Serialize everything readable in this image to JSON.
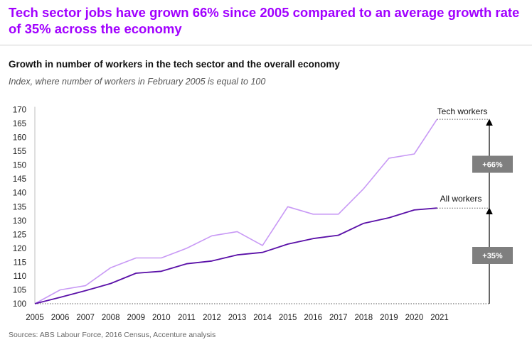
{
  "headline": "Tech sector jobs have grown 66% since 2005 compared to an average growth rate of 35% across the economy",
  "source": "Sources: ABS Labour Force, 2016 Census, Accenture analysis",
  "colors": {
    "headline": "#a100ff",
    "tech": "#c899f5",
    "all": "#5a10a8",
    "badge": "#7f7f7f"
  },
  "chart_data": {
    "type": "line",
    "title": "Growth in number of workers in the tech sector and the overall economy",
    "subtitle": "Index, where number of workers in February 2005 is equal to 100",
    "x_ticks": [
      "2005",
      "2006",
      "2007",
      "2008",
      "2009",
      "2010",
      "2011",
      "2012",
      "2013",
      "2014",
      "2015",
      "2016",
      "2017",
      "2018",
      "2019",
      "2020",
      "2021"
    ],
    "y_ticks": [
      100,
      105,
      110,
      115,
      120,
      125,
      130,
      135,
      140,
      145,
      150,
      155,
      160,
      165,
      170
    ],
    "xlim": [
      2005,
      2021
    ],
    "ylim": [
      100,
      170
    ],
    "grid": false,
    "series": [
      {
        "name": "Tech workers",
        "x": [
          2005,
          2006,
          2007,
          2008,
          2009,
          2010,
          2011,
          2012,
          2013,
          2014,
          2015,
          2016,
          2017,
          2018,
          2019,
          2020,
          2020.9
        ],
        "y": [
          100,
          105,
          106.5,
          113,
          116.5,
          116.5,
          120,
          124.5,
          126,
          121,
          135,
          132.3,
          132.3,
          141.5,
          152.5,
          154,
          166.5
        ]
      },
      {
        "name": "All workers",
        "x": [
          2005,
          2006,
          2007,
          2008,
          2009,
          2010,
          2011,
          2012,
          2013,
          2014,
          2015,
          2016,
          2017,
          2018,
          2019,
          2020,
          2020.9
        ],
        "y": [
          100,
          102.3,
          104.7,
          107.3,
          111,
          111.7,
          114.4,
          115.4,
          117.6,
          118.5,
          121.5,
          123.5,
          124.7,
          129,
          131,
          133.8,
          134.5
        ]
      }
    ],
    "annotations": [
      {
        "label": "+66%",
        "from": 100,
        "to": 166.5
      },
      {
        "label": "+35%",
        "from": 100,
        "to": 134.5
      }
    ]
  }
}
